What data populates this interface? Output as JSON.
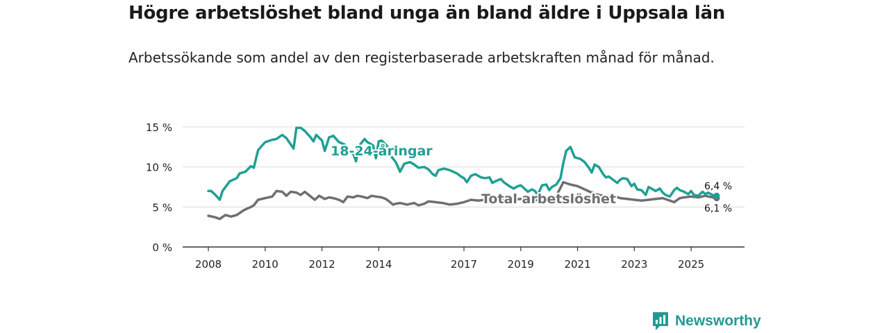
{
  "header": {
    "title": "Högre arbetslöshet bland unga än bland äldre i Uppsala län",
    "subtitle": "Arbetssökande som andel av den registerbaserade arbetskraften månad för månad."
  },
  "brand": {
    "name": "Newsworthy",
    "icon": "newsworthy-logo-icon"
  },
  "colors": {
    "youth": "#1fa093",
    "total": "#6e6e73",
    "grid": "#d9d9d9",
    "axis": "#333333"
  },
  "chart_data": {
    "type": "line",
    "title": "Högre arbetslöshet bland unga än bland äldre i Uppsala län",
    "xlabel": "",
    "ylabel": "",
    "xlim": [
      2008.0,
      2026.0
    ],
    "ylim": [
      0,
      15
    ],
    "y_ticks": [
      0,
      5,
      10,
      15
    ],
    "y_tick_labels": [
      "0 %",
      "5 %",
      "10 %",
      "15 %"
    ],
    "x_ticks": [
      2008,
      2010,
      2012,
      2014,
      2017,
      2019,
      2021,
      2023,
      2025
    ],
    "x_tick_labels": [
      "2008",
      "2010",
      "2012",
      "2014",
      "2017",
      "2019",
      "2021",
      "2023",
      "2025"
    ],
    "grid": true,
    "series": [
      {
        "name": "18-24-åringar",
        "label": "18-24-åringar",
        "end_label": "6,4 %",
        "color": "#1fa093",
        "points": [
          [
            2008.0,
            7.0
          ],
          [
            2008.1,
            7.0
          ],
          [
            2008.25,
            6.5
          ],
          [
            2008.4,
            5.9
          ],
          [
            2008.5,
            7.0
          ],
          [
            2008.75,
            8.2
          ],
          [
            2009.0,
            8.6
          ],
          [
            2009.1,
            9.2
          ],
          [
            2009.3,
            9.4
          ],
          [
            2009.5,
            10.1
          ],
          [
            2009.6,
            9.9
          ],
          [
            2009.75,
            12.1
          ],
          [
            2010.0,
            13.1
          ],
          [
            2010.25,
            13.4
          ],
          [
            2010.4,
            13.5
          ],
          [
            2010.6,
            14.0
          ],
          [
            2010.75,
            13.6
          ],
          [
            2011.0,
            12.3
          ],
          [
            2011.1,
            14.9
          ],
          [
            2011.25,
            14.9
          ],
          [
            2011.4,
            14.5
          ],
          [
            2011.6,
            13.7
          ],
          [
            2011.7,
            13.2
          ],
          [
            2011.8,
            14.0
          ],
          [
            2012.0,
            13.3
          ],
          [
            2012.1,
            12.0
          ],
          [
            2012.25,
            13.7
          ],
          [
            2012.4,
            13.9
          ],
          [
            2012.6,
            13.1
          ],
          [
            2012.8,
            12.8
          ],
          [
            2012.9,
            11.9
          ],
          [
            2013.1,
            11.7
          ],
          [
            2013.2,
            10.7
          ],
          [
            2013.3,
            12.6
          ],
          [
            2013.5,
            13.5
          ],
          [
            2013.6,
            13.1
          ],
          [
            2013.8,
            12.7
          ],
          [
            2013.9,
            11.1
          ],
          [
            2014.0,
            13.2
          ],
          [
            2014.1,
            13.3
          ],
          [
            2014.3,
            12.6
          ],
          [
            2014.4,
            11.5
          ],
          [
            2014.6,
            10.6
          ],
          [
            2014.75,
            9.4
          ],
          [
            2014.9,
            10.4
          ],
          [
            2015.1,
            10.6
          ],
          [
            2015.25,
            10.3
          ],
          [
            2015.4,
            9.9
          ],
          [
            2015.6,
            10.0
          ],
          [
            2015.75,
            9.7
          ],
          [
            2015.9,
            9.1
          ],
          [
            2016.0,
            8.9
          ],
          [
            2016.1,
            9.6
          ],
          [
            2016.3,
            9.8
          ],
          [
            2016.5,
            9.6
          ],
          [
            2016.75,
            9.2
          ],
          [
            2016.9,
            8.8
          ],
          [
            2017.0,
            8.6
          ],
          [
            2017.1,
            8.1
          ],
          [
            2017.25,
            8.9
          ],
          [
            2017.4,
            9.1
          ],
          [
            2017.6,
            8.7
          ],
          [
            2017.75,
            8.6
          ],
          [
            2017.9,
            8.7
          ],
          [
            2018.0,
            8.0
          ],
          [
            2018.1,
            8.2
          ],
          [
            2018.3,
            8.5
          ],
          [
            2018.4,
            8.1
          ],
          [
            2018.6,
            7.6
          ],
          [
            2018.75,
            7.3
          ],
          [
            2018.9,
            7.6
          ],
          [
            2019.0,
            7.7
          ],
          [
            2019.1,
            7.4
          ],
          [
            2019.25,
            6.9
          ],
          [
            2019.4,
            7.2
          ],
          [
            2019.5,
            7.0
          ],
          [
            2019.6,
            6.5
          ],
          [
            2019.75,
            7.7
          ],
          [
            2019.9,
            7.8
          ],
          [
            2020.0,
            7.1
          ],
          [
            2020.1,
            7.5
          ],
          [
            2020.25,
            7.8
          ],
          [
            2020.4,
            8.6
          ],
          [
            2020.5,
            10.5
          ],
          [
            2020.6,
            12.0
          ],
          [
            2020.75,
            12.5
          ],
          [
            2020.9,
            11.2
          ],
          [
            2021.0,
            11.1
          ],
          [
            2021.1,
            11.0
          ],
          [
            2021.25,
            10.6
          ],
          [
            2021.4,
            9.9
          ],
          [
            2021.5,
            9.3
          ],
          [
            2021.6,
            10.3
          ],
          [
            2021.75,
            10.0
          ],
          [
            2021.9,
            9.1
          ],
          [
            2022.0,
            8.7
          ],
          [
            2022.1,
            8.8
          ],
          [
            2022.25,
            8.4
          ],
          [
            2022.4,
            8.0
          ],
          [
            2022.5,
            8.4
          ],
          [
            2022.6,
            8.6
          ],
          [
            2022.75,
            8.5
          ],
          [
            2022.9,
            7.6
          ],
          [
            2023.0,
            7.9
          ],
          [
            2023.1,
            7.2
          ],
          [
            2023.25,
            7.1
          ],
          [
            2023.4,
            6.5
          ],
          [
            2023.5,
            7.5
          ],
          [
            2023.6,
            7.3
          ],
          [
            2023.75,
            7.0
          ],
          [
            2023.9,
            7.3
          ],
          [
            2024.0,
            6.8
          ],
          [
            2024.1,
            6.5
          ],
          [
            2024.25,
            6.3
          ],
          [
            2024.4,
            7.1
          ],
          [
            2024.5,
            7.4
          ],
          [
            2024.6,
            7.1
          ],
          [
            2024.75,
            6.9
          ],
          [
            2024.9,
            6.6
          ],
          [
            2025.0,
            7.0
          ],
          [
            2025.1,
            6.5
          ],
          [
            2025.25,
            6.4
          ],
          [
            2025.4,
            6.9
          ],
          [
            2025.5,
            6.6
          ],
          [
            2025.6,
            6.8
          ],
          [
            2025.75,
            6.5
          ],
          [
            2025.9,
            6.4
          ]
        ]
      },
      {
        "name": "Total arbetslöshet",
        "label": "Total arbetslöshet",
        "end_label": "6,1 %",
        "color": "#6e6e73",
        "points": [
          [
            2008.0,
            3.9
          ],
          [
            2008.25,
            3.7
          ],
          [
            2008.4,
            3.5
          ],
          [
            2008.6,
            4.0
          ],
          [
            2008.8,
            3.8
          ],
          [
            2009.0,
            4.0
          ],
          [
            2009.25,
            4.6
          ],
          [
            2009.5,
            5.0
          ],
          [
            2009.6,
            5.2
          ],
          [
            2009.75,
            5.9
          ],
          [
            2010.0,
            6.1
          ],
          [
            2010.25,
            6.3
          ],
          [
            2010.4,
            7.0
          ],
          [
            2010.6,
            6.9
          ],
          [
            2010.75,
            6.4
          ],
          [
            2010.9,
            6.9
          ],
          [
            2011.1,
            6.8
          ],
          [
            2011.25,
            6.5
          ],
          [
            2011.4,
            6.9
          ],
          [
            2011.5,
            6.6
          ],
          [
            2011.75,
            5.9
          ],
          [
            2011.9,
            6.4
          ],
          [
            2012.1,
            6.0
          ],
          [
            2012.25,
            6.2
          ],
          [
            2012.4,
            6.1
          ],
          [
            2012.6,
            5.9
          ],
          [
            2012.75,
            5.6
          ],
          [
            2012.9,
            6.3
          ],
          [
            2013.1,
            6.2
          ],
          [
            2013.25,
            6.4
          ],
          [
            2013.4,
            6.3
          ],
          [
            2013.6,
            6.1
          ],
          [
            2013.75,
            6.4
          ],
          [
            2013.9,
            6.3
          ],
          [
            2014.1,
            6.2
          ],
          [
            2014.25,
            6.0
          ],
          [
            2014.4,
            5.6
          ],
          [
            2014.5,
            5.3
          ],
          [
            2014.6,
            5.4
          ],
          [
            2014.75,
            5.5
          ],
          [
            2015.0,
            5.3
          ],
          [
            2015.25,
            5.5
          ],
          [
            2015.4,
            5.2
          ],
          [
            2015.6,
            5.4
          ],
          [
            2015.75,
            5.7
          ],
          [
            2016.0,
            5.6
          ],
          [
            2016.25,
            5.5
          ],
          [
            2016.5,
            5.3
          ],
          [
            2016.75,
            5.4
          ],
          [
            2017.0,
            5.6
          ],
          [
            2017.25,
            5.9
          ],
          [
            2017.5,
            5.8
          ],
          [
            2017.75,
            5.9
          ],
          [
            2018.0,
            6.0
          ],
          [
            2018.25,
            6.1
          ],
          [
            2018.5,
            6.0
          ],
          [
            2018.75,
            5.9
          ],
          [
            2019.0,
            6.0
          ],
          [
            2019.25,
            5.9
          ],
          [
            2019.5,
            5.8
          ],
          [
            2019.75,
            6.1
          ],
          [
            2020.0,
            6.0
          ],
          [
            2020.25,
            6.4
          ],
          [
            2020.4,
            7.4
          ],
          [
            2020.5,
            8.1
          ],
          [
            2020.75,
            7.8
          ],
          [
            2021.0,
            7.6
          ],
          [
            2021.25,
            7.2
          ],
          [
            2021.5,
            6.8
          ],
          [
            2021.75,
            6.5
          ],
          [
            2022.0,
            6.3
          ],
          [
            2022.25,
            6.4
          ],
          [
            2022.5,
            6.1
          ],
          [
            2022.75,
            6.0
          ],
          [
            2023.0,
            5.9
          ],
          [
            2023.25,
            5.8
          ],
          [
            2023.5,
            5.9
          ],
          [
            2023.75,
            6.0
          ],
          [
            2024.0,
            6.1
          ],
          [
            2024.25,
            5.8
          ],
          [
            2024.4,
            5.6
          ],
          [
            2024.6,
            6.1
          ],
          [
            2024.75,
            6.2
          ],
          [
            2025.0,
            6.3
          ],
          [
            2025.25,
            6.2
          ],
          [
            2025.5,
            6.4
          ],
          [
            2025.75,
            6.2
          ],
          [
            2025.9,
            6.1
          ]
        ]
      }
    ]
  }
}
